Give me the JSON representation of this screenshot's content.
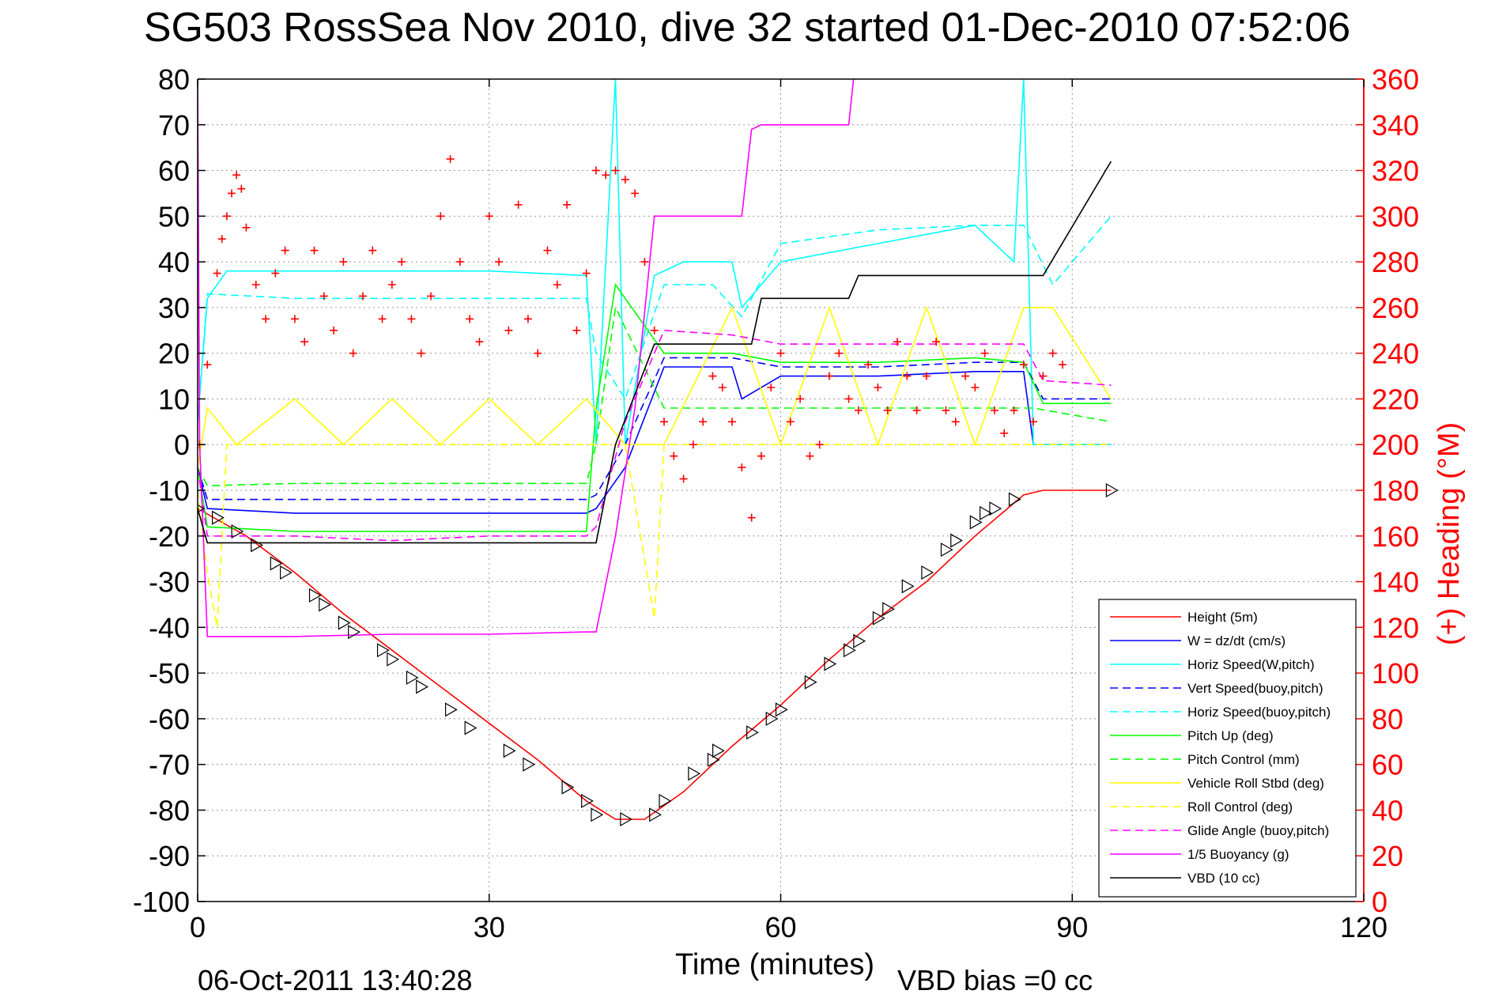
{
  "title": "SG503 RossSea Nov 2010, dive 32 started 01-Dec-2010 07:52:06",
  "footer": {
    "timestamp": "06-Oct-2011 13:40:28",
    "vbd_bias": "VBD bias =0 cc"
  },
  "chart_data": {
    "type": "line",
    "xlabel": "Time (minutes)",
    "ylabel_left": "",
    "ylabel_right": "(+) Heading (°M)",
    "xlim": [
      0,
      120
    ],
    "ylim_left": [
      -100,
      80
    ],
    "ylim_right": [
      0,
      360
    ],
    "xticks": [
      "0",
      "30",
      "60",
      "90",
      "120"
    ],
    "yticks_left": [
      "80",
      "70",
      "60",
      "50",
      "40",
      "30",
      "20",
      "10",
      "0",
      "-10",
      "-20",
      "-30",
      "-40",
      "-50",
      "-60",
      "-70",
      "-80",
      "-90",
      "-100"
    ],
    "yticks_right": [
      "360",
      "340",
      "320",
      "300",
      "280",
      "260",
      "240",
      "220",
      "200",
      "180",
      "160",
      "140",
      "120",
      "100",
      "80",
      "60",
      "40",
      "20",
      "0"
    ],
    "grid": true,
    "legend_position": "bottom-right",
    "colors": {
      "height": "#ff0000",
      "w": "#0000ff",
      "horiz_speed": "#00ffff",
      "pitch_up": "#00ff00",
      "roll": "#ffff00",
      "glide": "#ff00ff",
      "buoyancy": "#ff00ff",
      "vbd": "#000000",
      "heading": "#ff0000"
    },
    "series": [
      {
        "name": "Height (5m)",
        "color": "#ff0000",
        "dash": "solid",
        "x": [
          0,
          5,
          10,
          15,
          20,
          25,
          30,
          35,
          40,
          43,
          46,
          50,
          55,
          60,
          65,
          70,
          75,
          80,
          85,
          87,
          94
        ],
        "y": [
          -14,
          -20,
          -28,
          -37,
          -45,
          -53,
          -61,
          -69,
          -78,
          -82,
          -82,
          -76,
          -66,
          -57,
          -47,
          -38,
          -30,
          -20,
          -11,
          -10,
          -10
        ]
      },
      {
        "name": "W = dz/dt (cm/s)",
        "color": "#0000ff",
        "dash": "solid",
        "x": [
          0,
          1,
          10,
          20,
          30,
          40,
          41,
          44,
          48,
          55,
          56,
          60,
          70,
          80,
          85,
          86,
          87,
          94
        ],
        "y": [
          -5,
          -14,
          -15,
          -15,
          -15,
          -15,
          -14,
          -5,
          17,
          17,
          10,
          15,
          15,
          16,
          16,
          0,
          0,
          0
        ]
      },
      {
        "name": "Horiz Speed(W,pitch)",
        "color": "#00ffff",
        "dash": "solid",
        "x": [
          0,
          1,
          3,
          10,
          20,
          30,
          40,
          41,
          43,
          44,
          47,
          50,
          55,
          56,
          60,
          70,
          80,
          84,
          85,
          86,
          87,
          94
        ],
        "y": [
          5,
          32,
          38,
          38,
          38,
          38,
          37,
          0,
          80,
          0,
          37,
          40,
          40,
          30,
          40,
          44,
          48,
          40,
          80,
          0,
          0,
          0
        ]
      },
      {
        "name": "Vert Speed(buoy,pitch)",
        "color": "#0000ff",
        "dash": "dashed",
        "x": [
          0,
          1,
          10,
          20,
          30,
          40,
          41,
          44,
          48,
          55,
          60,
          70,
          80,
          85,
          87,
          94
        ],
        "y": [
          -5,
          -12,
          -12,
          -12,
          -12,
          -12,
          -11,
          0,
          19,
          19,
          17,
          17,
          18,
          18,
          10,
          10
        ]
      },
      {
        "name": "Horiz Speed(buoy,pitch)",
        "color": "#00ffff",
        "dash": "dashed",
        "x": [
          0,
          1,
          10,
          20,
          30,
          40,
          41,
          44,
          48,
          53,
          56,
          60,
          70,
          80,
          85,
          88,
          94
        ],
        "y": [
          5,
          33,
          32,
          32,
          32,
          32,
          20,
          10,
          35,
          35,
          28,
          44,
          47,
          48,
          48,
          35,
          50
        ]
      },
      {
        "name": "Pitch Up (deg)",
        "color": "#00ff00",
        "dash": "solid",
        "x": [
          0,
          1,
          10,
          20,
          30,
          40,
          41,
          43,
          48,
          55,
          60,
          70,
          80,
          85,
          87,
          94
        ],
        "y": [
          -5,
          -18,
          -19,
          -19,
          -19,
          -19,
          8,
          35,
          20,
          20,
          18,
          18,
          19,
          18,
          9,
          9
        ]
      },
      {
        "name": "Pitch Control (mm)",
        "color": "#00ff00",
        "dash": "dashed",
        "x": [
          0,
          1,
          10,
          20,
          30,
          40,
          41,
          43,
          48,
          60,
          70,
          80,
          86,
          94
        ],
        "y": [
          -5,
          -9,
          -8.5,
          -8.5,
          -8.5,
          -8.5,
          0,
          30,
          8,
          8,
          8,
          8,
          8,
          5
        ]
      },
      {
        "name": "Vehicle Roll Stbd (deg)",
        "color": "#ffff00",
        "dash": "solid",
        "x": [
          0,
          1,
          4,
          10,
          15,
          20,
          25,
          30,
          35,
          40,
          44,
          48,
          55,
          60,
          65,
          70,
          75,
          80,
          85,
          88,
          94
        ],
        "y": [
          -5,
          8,
          0,
          10,
          0,
          10,
          0,
          10,
          0,
          10,
          0,
          0,
          30,
          0,
          30,
          0,
          30,
          0,
          30,
          30,
          10
        ]
      },
      {
        "name": "Roll Control (deg)",
        "color": "#ffff00",
        "dash": "dashed",
        "x": [
          0,
          1,
          2,
          3,
          10,
          20,
          30,
          40,
          44,
          47,
          48,
          55,
          60,
          70,
          80,
          85,
          94
        ],
        "y": [
          -10,
          -28,
          -40,
          0,
          0,
          0,
          0,
          0,
          0,
          -38,
          0,
          0,
          0,
          0,
          0,
          0,
          0
        ]
      },
      {
        "name": "Glide Angle (buoy,pitch)",
        "color": "#ff00ff",
        "dash": "dashed",
        "x": [
          0,
          1,
          10,
          20,
          30,
          40,
          41,
          44,
          48,
          55,
          60,
          70,
          80,
          85,
          87,
          94
        ],
        "y": [
          -5,
          -20,
          -20,
          -21,
          -20,
          -20,
          -18,
          5,
          25,
          24,
          22,
          22,
          22,
          22,
          14,
          13
        ]
      },
      {
        "name": "1/5 Buoyancy (g)",
        "color": "#ff00ff",
        "dash": "solid",
        "x": [
          0,
          0.2,
          1,
          10,
          20,
          30,
          40,
          41,
          43,
          45,
          47,
          53,
          56,
          57,
          58,
          64,
          67,
          68,
          90
        ],
        "y": [
          80,
          0,
          -42,
          -42,
          -41.5,
          -41.5,
          -41,
          -41,
          -20,
          8,
          50,
          50,
          50,
          69,
          70,
          70,
          70,
          90,
          90
        ]
      },
      {
        "name": "VBD (10 cc)",
        "color": "#000000",
        "dash": "solid",
        "x": [
          0,
          1,
          10,
          20,
          30,
          40,
          41,
          43,
          47,
          48,
          55,
          57,
          58,
          60,
          64,
          67,
          68,
          75,
          80,
          87,
          94
        ],
        "y": [
          -14,
          -21.5,
          -21.5,
          -21.5,
          -21.5,
          -21.5,
          -21.5,
          0,
          22,
          22,
          22,
          22,
          32,
          32,
          32,
          32,
          37,
          37,
          37,
          37,
          62
        ]
      }
    ],
    "heading_series": {
      "name": "Heading",
      "color": "#ff0000",
      "marker": "+",
      "x": [
        0.2,
        1,
        2,
        2.5,
        3,
        3.5,
        4,
        4.5,
        5,
        6,
        7,
        8,
        9,
        10,
        11,
        12,
        13,
        14,
        15,
        16,
        17,
        18,
        19,
        20,
        21,
        22,
        23,
        24,
        25,
        26,
        27,
        28,
        29,
        30,
        31,
        32,
        33,
        34,
        35,
        36,
        37,
        38,
        39,
        40,
        41,
        42,
        43,
        44,
        45,
        46,
        47,
        48,
        49,
        50,
        51,
        52,
        53,
        54,
        55,
        56,
        57,
        58,
        59,
        60,
        61,
        62,
        63,
        64,
        65,
        66,
        67,
        68,
        69,
        70,
        71,
        72,
        73,
        74,
        75,
        76,
        77,
        78,
        79,
        80,
        81,
        82,
        83,
        84,
        85,
        86,
        87,
        88,
        89
      ],
      "y": [
        200,
        235,
        275,
        290,
        300,
        310,
        318,
        312,
        295,
        270,
        255,
        275,
        285,
        255,
        245,
        285,
        265,
        250,
        280,
        240,
        265,
        285,
        255,
        270,
        280,
        255,
        240,
        265,
        300,
        325,
        280,
        255,
        245,
        300,
        280,
        250,
        305,
        255,
        240,
        285,
        270,
        305,
        250,
        275,
        320,
        318,
        320,
        316,
        310,
        280,
        250,
        210,
        195,
        185,
        200,
        210,
        230,
        225,
        210,
        190,
        168,
        195,
        225,
        240,
        210,
        220,
        195,
        200,
        230,
        240,
        220,
        215,
        235,
        225,
        215,
        245,
        230,
        215,
        230,
        245,
        215,
        210,
        230,
        225,
        240,
        215,
        205,
        215,
        235,
        210,
        230,
        240,
        235
      ]
    },
    "markers": {
      "name": "Triangle markers on height trace",
      "x": [
        0,
        2,
        4,
        6,
        8,
        9,
        12,
        13,
        15,
        16,
        19,
        20,
        22,
        23,
        26,
        28,
        32,
        34,
        38,
        40,
        41,
        44,
        47,
        48,
        51,
        53,
        53.5,
        57,
        59,
        60,
        63,
        65,
        67,
        68,
        70,
        71,
        73,
        75,
        77,
        78,
        80,
        81,
        82,
        84,
        94
      ],
      "y": [
        -14,
        -16,
        -19,
        -22,
        -26,
        -28,
        -33,
        -35,
        -39,
        -41,
        -45,
        -47,
        -51,
        -53,
        -58,
        -62,
        -67,
        -70,
        -75,
        -78,
        -81,
        -82,
        -81,
        -78,
        -72,
        -69,
        -67,
        -63,
        -60,
        -58,
        -52,
        -48,
        -45,
        -43,
        -38,
        -36,
        -31,
        -28,
        -23,
        -21,
        -17,
        -15,
        -14,
        -12,
        -10
      ]
    }
  },
  "legend": {
    "entries": [
      {
        "label": "Height (5m)",
        "color": "#ff0000",
        "dash": "solid"
      },
      {
        "label": "W = dz/dt (cm/s)",
        "color": "#0000ff",
        "dash": "solid"
      },
      {
        "label": "Horiz Speed(W,pitch)",
        "color": "#00ffff",
        "dash": "solid"
      },
      {
        "label": "Vert Speed(buoy,pitch)",
        "color": "#0000ff",
        "dash": "dashed"
      },
      {
        "label": "Horiz Speed(buoy,pitch)",
        "color": "#00ffff",
        "dash": "dashed"
      },
      {
        "label": "Pitch Up (deg)",
        "color": "#00ff00",
        "dash": "solid"
      },
      {
        "label": "Pitch Control (mm)",
        "color": "#00ff00",
        "dash": "dashed"
      },
      {
        "label": "Vehicle Roll Stbd (deg)",
        "color": "#ffff00",
        "dash": "solid"
      },
      {
        "label": "Roll Control (deg)",
        "color": "#ffff00",
        "dash": "dashed"
      },
      {
        "label": "Glide Angle (buoy,pitch)",
        "color": "#ff00ff",
        "dash": "dashed"
      },
      {
        "label": "1/5 Buoyancy (g)",
        "color": "#ff00ff",
        "dash": "solid"
      },
      {
        "label": "VBD (10 cc)",
        "color": "#000000",
        "dash": "solid"
      }
    ]
  }
}
